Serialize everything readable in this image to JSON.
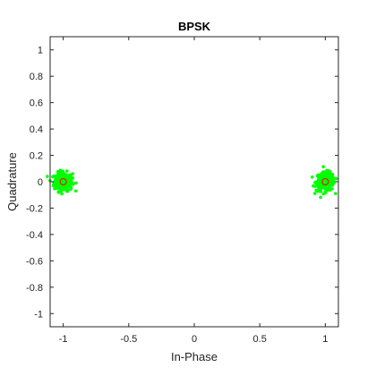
{
  "chart_data": {
    "type": "scatter",
    "title": "BPSK",
    "xlabel": "In-Phase",
    "ylabel": "Quadrature",
    "xlim": [
      -1.1,
      1.1
    ],
    "ylim": [
      -1.1,
      1.1
    ],
    "xticks": [
      -1,
      -0.5,
      0,
      0.5,
      1
    ],
    "xtick_labels": [
      "-1",
      "-0.5",
      "0",
      "0.5",
      "1"
    ],
    "yticks": [
      -1,
      -0.8,
      -0.6,
      -0.4,
      -0.2,
      0,
      0.2,
      0.4,
      0.6,
      0.8,
      1
    ],
    "ytick_labels": [
      "-1",
      "-0.8",
      "-0.6",
      "-0.4",
      "-0.2",
      "0",
      "0.2",
      "0.4",
      "0.6",
      "0.8",
      "1"
    ],
    "grid": false,
    "series": [
      {
        "role": "received-samples",
        "marker": "dot",
        "color": "#00ff00",
        "clusters": [
          {
            "x": -1,
            "y": 0,
            "spread": 0.1
          },
          {
            "x": 1,
            "y": 0,
            "spread": 0.1
          }
        ]
      },
      {
        "role": "reference-constellation",
        "marker": "circle",
        "color": "#ff0000",
        "points": [
          {
            "x": -1,
            "y": 0
          },
          {
            "x": 1,
            "y": 0
          }
        ]
      }
    ]
  }
}
